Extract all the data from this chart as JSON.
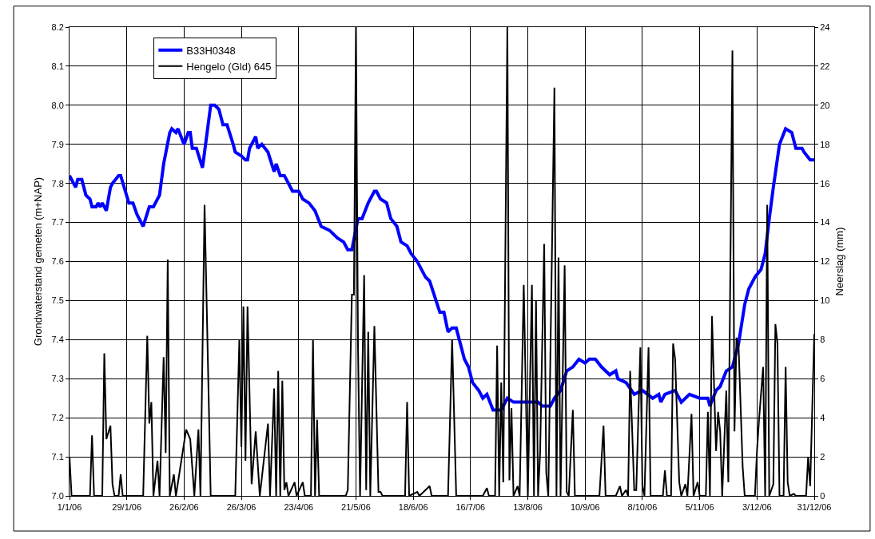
{
  "chart_data": {
    "type": "line",
    "ylabel": "Grondwaterstand gemeten (m+NAP)",
    "y2label": "Neerslag (mm)",
    "xlim": [
      "2006-01-01",
      "2006-12-31"
    ],
    "xticks": [
      {
        "value": "2006-01-01",
        "label": "1/1/06"
      },
      {
        "value": "2006-01-29",
        "label": "29/1/06"
      },
      {
        "value": "2006-02-26",
        "label": "26/2/06"
      },
      {
        "value": "2006-03-26",
        "label": "26/3/06"
      },
      {
        "value": "2006-04-23",
        "label": "23/4/06"
      },
      {
        "value": "2006-05-21",
        "label": "21/5/06"
      },
      {
        "value": "2006-06-18",
        "label": "18/6/06"
      },
      {
        "value": "2006-07-16",
        "label": "16/7/06"
      },
      {
        "value": "2006-08-13",
        "label": "13/8/06"
      },
      {
        "value": "2006-09-10",
        "label": "10/9/06"
      },
      {
        "value": "2006-10-08",
        "label": "8/10/06"
      },
      {
        "value": "2006-11-05",
        "label": "5/11/06"
      },
      {
        "value": "2006-12-03",
        "label": "3/12/06"
      },
      {
        "value": "2006-12-31",
        "label": "31/12/06"
      }
    ],
    "ylim": [
      7.0,
      8.2
    ],
    "yticks": [
      {
        "value": 7.0,
        "label": "7.0"
      },
      7.1,
      7.2,
      7.3,
      7.4,
      7.5,
      7.6,
      7.7,
      7.8,
      7.9,
      {
        "value": 8.0,
        "label": "8.0"
      },
      8.1,
      8.2
    ],
    "y2lim": [
      0,
      24
    ],
    "y2ticks": [
      0,
      2,
      4,
      6,
      8,
      10,
      12,
      14,
      16,
      18,
      20,
      22,
      24
    ],
    "grid": true,
    "legend": "top left",
    "marker": "none",
    "series": [
      {
        "name": "B33H0348",
        "color": "#0000ff",
        "line_style": "solid",
        "x": [
          "2006-01-01",
          "2006-01-04",
          "2006-01-05",
          "2006-01-07",
          "2006-01-09",
          "2006-01-11",
          "2006-01-12",
          "2006-01-14",
          "2006-01-15",
          "2006-01-16",
          "2006-01-17",
          "2006-01-19",
          "2006-01-21",
          "2006-01-22",
          "2006-01-25",
          "2006-01-26",
          "2006-01-30",
          "2006-02-01",
          "2006-02-03",
          "2006-02-06",
          "2006-02-09",
          "2006-02-11",
          "2006-02-14",
          "2006-02-16",
          "2006-02-19",
          "2006-02-20",
          "2006-02-22",
          "2006-02-23",
          "2006-02-26",
          "2006-02-28",
          "2006-03-01",
          "2006-03-02",
          "2006-03-04",
          "2006-03-07",
          "2006-03-08",
          "2006-03-11",
          "2006-03-13",
          "2006-03-15",
          "2006-03-17",
          "2006-03-19",
          "2006-03-22",
          "2006-03-23",
          "2006-03-26",
          "2006-03-28",
          "2006-03-29",
          "2006-03-30",
          "2006-04-02",
          "2006-04-03",
          "2006-04-05",
          "2006-04-08",
          "2006-04-11",
          "2006-04-12",
          "2006-04-14",
          "2006-04-16",
          "2006-04-20",
          "2006-04-23",
          "2006-04-25",
          "2006-04-28",
          "2006-05-01",
          "2006-05-04",
          "2006-05-08",
          "2006-05-12",
          "2006-05-15",
          "2006-05-17",
          "2006-05-19",
          "2006-05-22",
          "2006-05-24",
          "2006-05-27",
          "2006-05-30",
          "2006-05-31",
          "2006-06-02",
          "2006-06-05",
          "2006-06-07",
          "2006-06-10",
          "2006-06-12",
          "2006-06-15",
          "2006-06-17",
          "2006-06-20",
          "2006-06-24",
          "2006-06-26",
          "2006-07-01",
          "2006-07-03",
          "2006-07-05",
          "2006-07-07",
          "2006-07-09",
          "2006-07-13",
          "2006-07-15",
          "2006-07-17",
          "2006-07-20",
          "2006-07-22",
          "2006-07-24",
          "2006-07-27",
          "2006-07-31",
          "2006-08-03",
          "2006-08-06",
          "2006-08-10",
          "2006-08-12",
          "2006-08-18",
          "2006-08-20",
          "2006-08-24",
          "2006-08-26",
          "2006-08-29",
          "2006-09-01",
          "2006-09-04",
          "2006-09-07",
          "2006-09-10",
          "2006-09-12",
          "2006-09-15",
          "2006-09-18",
          "2006-09-22",
          "2006-09-25",
          "2006-09-26",
          "2006-09-30",
          "2006-10-04",
          "2006-10-08",
          "2006-10-13",
          "2006-10-16",
          "2006-10-17",
          "2006-10-19",
          "2006-10-24",
          "2006-10-27",
          "2006-10-31",
          "2006-11-05",
          "2006-11-09",
          "2006-11-10",
          "2006-11-13",
          "2006-11-15",
          "2006-11-18",
          "2006-11-21",
          "2006-11-24",
          "2006-11-27",
          "2006-11-29",
          "2006-12-02",
          "2006-12-05",
          "2006-12-07",
          "2006-12-09",
          "2006-12-11",
          "2006-12-14",
          "2006-12-17",
          "2006-12-20",
          "2006-12-22",
          "2006-12-25",
          "2006-12-26",
          "2006-12-29",
          "2006-12-31"
        ],
        "values": [
          7.82,
          7.79,
          7.81,
          7.81,
          7.77,
          7.76,
          7.74,
          7.74,
          7.75,
          7.74,
          7.75,
          7.73,
          7.79,
          7.8,
          7.82,
          7.82,
          7.75,
          7.75,
          7.72,
          7.69,
          7.74,
          7.74,
          7.77,
          7.85,
          7.93,
          7.94,
          7.93,
          7.94,
          7.9,
          7.93,
          7.93,
          7.89,
          7.89,
          7.84,
          7.88,
          8.0,
          8.0,
          7.99,
          7.95,
          7.95,
          7.9,
          7.88,
          7.87,
          7.86,
          7.86,
          7.89,
          7.92,
          7.89,
          7.9,
          7.88,
          7.83,
          7.85,
          7.82,
          7.82,
          7.78,
          7.78,
          7.76,
          7.75,
          7.73,
          7.69,
          7.68,
          7.66,
          7.65,
          7.63,
          7.63,
          7.71,
          7.71,
          7.75,
          7.78,
          7.78,
          7.76,
          7.75,
          7.71,
          7.69,
          7.65,
          7.64,
          7.62,
          7.6,
          7.56,
          7.55,
          7.47,
          7.47,
          7.42,
          7.43,
          7.43,
          7.35,
          7.33,
          7.29,
          7.27,
          7.25,
          7.26,
          7.22,
          7.22,
          7.25,
          7.24,
          7.24,
          7.24,
          7.24,
          7.23,
          7.23,
          7.25,
          7.27,
          7.32,
          7.33,
          7.35,
          7.34,
          7.35,
          7.35,
          7.33,
          7.31,
          7.32,
          7.3,
          7.29,
          7.26,
          7.27,
          7.25,
          7.26,
          7.24,
          7.26,
          7.27,
          7.24,
          7.26,
          7.25,
          7.25,
          7.23,
          7.27,
          7.28,
          7.32,
          7.33,
          7.39,
          7.49,
          7.53,
          7.56,
          7.58,
          7.62,
          7.71,
          7.79,
          7.9,
          7.94,
          7.93,
          7.89,
          7.89,
          7.88,
          7.86,
          7.86
        ]
      },
      {
        "name": "Hengelo (Gld) 645",
        "color": "#000000",
        "axis": "y2",
        "line_style": "solid",
        "x": [
          "2006-01-01",
          "2006-01-02",
          "2006-01-11",
          "2006-01-12",
          "2006-01-13",
          "2006-01-17",
          "2006-01-18",
          "2006-01-19",
          "2006-01-21",
          "2006-01-22",
          "2006-01-23",
          "2006-01-25",
          "2006-01-26",
          "2006-01-27",
          "2006-02-06",
          "2006-02-08",
          "2006-02-09",
          "2006-02-10",
          "2006-02-11",
          "2006-02-13",
          "2006-02-14",
          "2006-02-16",
          "2006-02-17",
          "2006-02-18",
          "2006-02-19",
          "2006-02-21",
          "2006-02-22",
          "2006-02-27",
          "2006-03-01",
          "2006-03-03",
          "2006-03-05",
          "2006-03-06",
          "2006-03-08",
          "2006-03-10",
          "2006-03-11",
          "2006-03-23",
          "2006-03-25",
          "2006-03-26",
          "2006-03-27",
          "2006-03-28",
          "2006-03-29",
          "2006-03-31",
          "2006-04-02",
          "2006-04-04",
          "2006-04-08",
          "2006-04-09",
          "2006-04-11",
          "2006-04-12",
          "2006-04-13",
          "2006-04-14",
          "2006-04-15",
          "2006-04-16",
          "2006-04-17",
          "2006-04-18",
          "2006-04-21",
          "2006-04-22",
          "2006-04-25",
          "2006-04-26",
          "2006-04-29",
          "2006-04-30",
          "2006-05-01",
          "2006-05-02",
          "2006-05-03",
          "2006-05-16",
          "2006-05-17",
          "2006-05-19",
          "2006-05-20",
          "2006-05-21",
          "2006-05-22",
          "2006-05-23",
          "2006-05-25",
          "2006-05-26",
          "2006-05-27",
          "2006-05-28",
          "2006-05-30",
          "2006-06-01",
          "2006-06-02",
          "2006-06-03",
          "2006-06-14",
          "2006-06-15",
          "2006-06-16",
          "2006-06-20",
          "2006-06-21",
          "2006-06-26",
          "2006-06-27",
          "2006-07-05",
          "2006-07-07",
          "2006-07-09",
          "2006-07-22",
          "2006-07-24",
          "2006-07-25",
          "2006-07-28",
          "2006-07-29",
          "2006-07-30",
          "2006-07-31",
          "2006-08-01",
          "2006-08-03",
          "2006-08-04",
          "2006-08-05",
          "2006-08-06",
          "2006-08-08",
          "2006-08-09",
          "2006-08-11",
          "2006-08-13",
          "2006-08-15",
          "2006-08-16",
          "2006-08-17",
          "2006-08-18",
          "2006-08-19",
          "2006-08-21",
          "2006-08-22",
          "2006-08-23",
          "2006-08-26",
          "2006-08-27",
          "2006-08-28",
          "2006-08-29",
          "2006-08-31",
          "2006-09-01",
          "2006-09-02",
          "2006-09-04",
          "2006-09-05",
          "2006-09-17",
          "2006-09-19",
          "2006-09-20",
          "2006-09-25",
          "2006-09-27",
          "2006-09-28",
          "2006-09-30",
          "2006-10-01",
          "2006-10-02",
          "2006-10-04",
          "2006-10-05",
          "2006-10-07",
          "2006-10-08",
          "2006-10-09",
          "2006-10-11",
          "2006-10-12",
          "2006-10-18",
          "2006-10-19",
          "2006-10-20",
          "2006-10-22",
          "2006-10-23",
          "2006-10-24",
          "2006-10-26",
          "2006-10-27",
          "2006-10-29",
          "2006-10-30",
          "2006-11-01",
          "2006-11-02",
          "2006-11-04",
          "2006-11-05",
          "2006-11-08",
          "2006-11-09",
          "2006-11-10",
          "2006-11-11",
          "2006-11-13",
          "2006-11-14",
          "2006-11-15",
          "2006-11-16",
          "2006-11-18",
          "2006-11-19",
          "2006-11-21",
          "2006-11-22",
          "2006-11-23",
          "2006-11-24",
          "2006-11-26",
          "2006-11-27",
          "2006-12-02",
          "2006-12-03",
          "2006-12-04",
          "2006-12-06",
          "2006-12-07",
          "2006-12-08",
          "2006-12-09",
          "2006-12-11",
          "2006-12-12",
          "2006-12-13",
          "2006-12-14",
          "2006-12-16",
          "2006-12-17",
          "2006-12-18",
          "2006-12-19",
          "2006-12-21",
          "2006-12-22",
          "2006-12-27",
          "2006-12-28",
          "2006-12-29",
          "2006-12-31"
        ],
        "values": [
          2.0,
          0,
          0,
          3.1,
          0,
          0,
          7.3,
          2.9,
          3.6,
          0.6,
          0,
          0,
          1.1,
          0,
          0,
          8.2,
          3.7,
          4.8,
          0,
          1.8,
          0,
          7.1,
          2.2,
          12.1,
          0,
          1.1,
          0,
          3.4,
          2.9,
          0,
          3.4,
          0,
          14.9,
          5.1,
          0,
          0,
          8.0,
          2.5,
          9.7,
          1.8,
          9.7,
          0.6,
          3.3,
          0,
          3.7,
          0,
          5.5,
          0,
          6.4,
          0,
          5.9,
          0.3,
          0.7,
          0,
          0.7,
          0,
          0.7,
          0,
          0,
          8.0,
          0,
          3.9,
          0,
          0,
          0.3,
          10.3,
          10.3,
          24,
          7.7,
          0,
          11.3,
          0.3,
          8.4,
          0,
          8.7,
          0.2,
          0.2,
          0,
          0,
          4.8,
          0,
          0.2,
          0,
          0.5,
          0,
          0,
          8.0,
          0,
          0,
          0.4,
          0,
          0,
          7.7,
          0,
          5.8,
          0.7,
          24,
          0.8,
          4.5,
          0,
          0.5,
          0,
          10.8,
          0,
          10.8,
          0,
          10.0,
          0,
          2.2,
          12.9,
          1.2,
          0,
          20.9,
          0,
          12.2,
          0,
          11.8,
          0.2,
          0,
          4.4,
          0,
          0,
          3.6,
          0,
          0,
          0.5,
          0,
          0.3,
          0,
          6.4,
          0.3,
          0.3,
          7.6,
          0.5,
          0,
          7.6,
          0,
          0,
          1.3,
          0,
          0,
          7.8,
          7.0,
          0.7,
          0,
          0.6,
          0,
          4.2,
          0,
          0.7,
          0,
          0,
          4.3,
          0,
          9.2,
          2.3,
          4.3,
          3.3,
          0,
          5.4,
          0.7,
          22.8,
          3.3,
          8.1,
          7.7,
          1.5,
          0,
          0,
          2.3,
          3.9,
          6.6,
          0,
          14.9,
          0,
          0.6,
          8.8,
          7.8,
          0,
          0,
          6.6,
          0.7,
          0,
          0.1,
          0,
          0,
          2.0,
          0.5,
          8.3
        ]
      }
    ]
  }
}
